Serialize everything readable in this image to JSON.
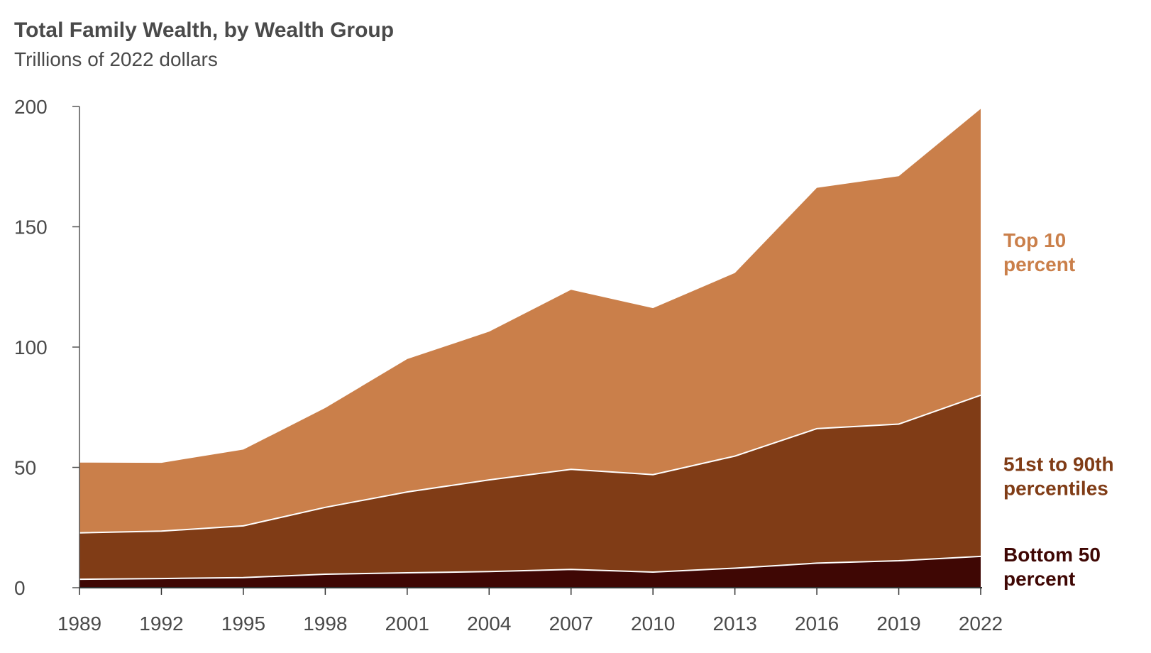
{
  "chart_data": {
    "type": "area",
    "stacked": true,
    "title": "Total Family Wealth, by Wealth Group",
    "subtitle": "Trillions of 2022 dollars",
    "xlabel": "",
    "ylabel": "",
    "x": [
      "1989",
      "1992",
      "1995",
      "1998",
      "2001",
      "2004",
      "2007",
      "2010",
      "2013",
      "2016",
      "2019",
      "2022"
    ],
    "yticks": [
      "0",
      "50",
      "100",
      "150",
      "200"
    ],
    "ylim": [
      0,
      200
    ],
    "grid": false,
    "legend": "inline-right",
    "series": [
      {
        "name": "Bottom 50 percent",
        "label_lines": [
          "Bottom 50",
          "percent"
        ],
        "color": "#3f0704",
        "values": [
          3.5,
          3.8,
          4.2,
          5.6,
          6.2,
          6.7,
          7.6,
          6.5,
          8.1,
          10.2,
          11.2,
          13.0
        ]
      },
      {
        "name": "51st to 90th percentiles",
        "label_lines": [
          "51st to 90th",
          "percentiles"
        ],
        "color": "#803c16",
        "values": [
          19.3,
          19.7,
          21.5,
          27.8,
          33.6,
          38.1,
          41.6,
          40.5,
          46.6,
          55.9,
          56.8,
          67.0
        ]
      },
      {
        "name": "Top 10 percent",
        "label_lines": [
          "Top 10",
          "percent"
        ],
        "color": "#ca7f4a",
        "values": [
          29.2,
          28.4,
          31.7,
          41.3,
          55.2,
          61.6,
          74.6,
          69.2,
          76.1,
          100.1,
          103.0,
          119.0
        ]
      }
    ]
  }
}
